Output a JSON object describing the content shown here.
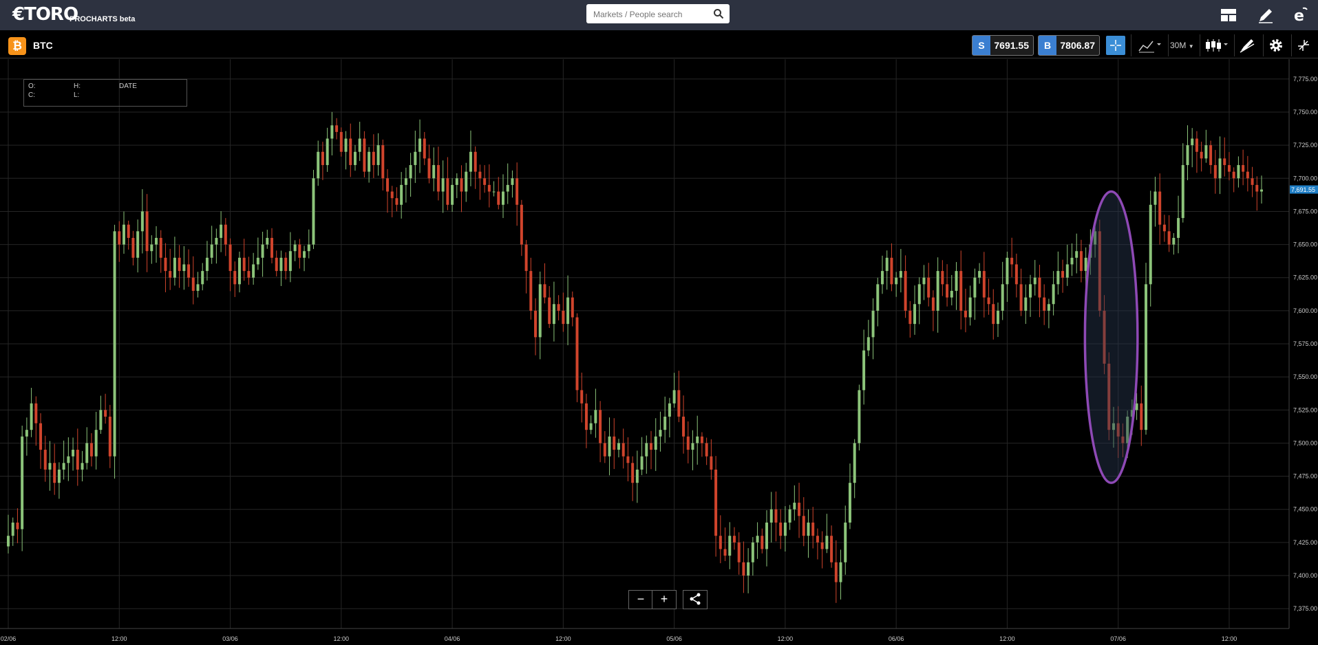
{
  "header": {
    "logo_text": "€TORO",
    "logo_sub": "PROCHARTS beta",
    "search_placeholder": "Markets / People search",
    "icons": [
      "layout-icon",
      "pencil-icon",
      "etoro-e-icon"
    ]
  },
  "instrument": {
    "symbol_badge": "₿",
    "name": "BTC",
    "sell_label": "S",
    "sell_price": "7691.55",
    "buy_label": "B",
    "buy_price": "7806.87",
    "timeframe": "30M",
    "icons": [
      "crosshair-icon",
      "indicators-icon",
      "candlestick-type-icon",
      "drawing-tools-icon",
      "gear-icon",
      "collapse-icon"
    ]
  },
  "ohlc_box": {
    "o": "O:",
    "h": "H:",
    "date": "DATE",
    "c": "C:",
    "l": "L:"
  },
  "zoom": {
    "minus": "−",
    "plus": "+",
    "share_icon": "share-icon"
  },
  "chart_data": {
    "type": "candlestick",
    "colors": {
      "up": "#8cc47a",
      "down": "#d0442c",
      "grid": "#262626",
      "axis_text": "#ccc",
      "current_price_bg": "#1f7ec5",
      "highlight": "#8e49b5"
    },
    "current_price": "7,691.55",
    "yticks": [
      7375,
      7400,
      7425,
      7450,
      7475,
      7500,
      7525,
      7550,
      7575,
      7600,
      7625,
      7650,
      7675,
      7700,
      7725,
      7750,
      7775
    ],
    "ytick_labels": [
      "7,375.00",
      "7,400.00",
      "7,425.00",
      "7,450.00",
      "7,475.00",
      "7,500.00",
      "7,525.00",
      "7,550.00",
      "7,575.00",
      "7,600.00",
      "7,625.00",
      "7,650.00",
      "7,675.00",
      "7,700.00",
      "7,725.00",
      "7,750.00",
      "7,775.00"
    ],
    "xticks": [
      {
        "i": 0,
        "label": "02/06"
      },
      {
        "i": 24,
        "label": "12:00"
      },
      {
        "i": 48,
        "label": "03/06"
      },
      {
        "i": 72,
        "label": "12:00"
      },
      {
        "i": 96,
        "label": "04/06"
      },
      {
        "i": 120,
        "label": "12:00"
      },
      {
        "i": 144,
        "label": "05/06"
      },
      {
        "i": 168,
        "label": "12:00"
      },
      {
        "i": 192,
        "label": "06/06"
      },
      {
        "i": 216,
        "label": "12:00"
      },
      {
        "i": 240,
        "label": "07/06"
      },
      {
        "i": 264,
        "label": "12:00"
      }
    ],
    "closes": [
      7430,
      7440,
      7435,
      7505,
      7510,
      7530,
      7515,
      7495,
      7480,
      7485,
      7470,
      7480,
      7485,
      7490,
      7495,
      7480,
      7485,
      7500,
      7490,
      7510,
      7525,
      7520,
      7490,
      7660,
      7650,
      7665,
      7655,
      7640,
      7660,
      7675,
      7645,
      7650,
      7655,
      7640,
      7630,
      7625,
      7640,
      7630,
      7635,
      7625,
      7615,
      7620,
      7630,
      7640,
      7650,
      7655,
      7665,
      7650,
      7630,
      7620,
      7640,
      7630,
      7625,
      7635,
      7640,
      7650,
      7655,
      7640,
      7630,
      7640,
      7630,
      7645,
      7650,
      7640,
      7645,
      7650,
      7700,
      7720,
      7710,
      7730,
      7740,
      7735,
      7720,
      7730,
      7710,
      7720,
      7730,
      7705,
      7720,
      7710,
      7725,
      7700,
      7690,
      7685,
      7680,
      7695,
      7700,
      7710,
      7720,
      7730,
      7715,
      7700,
      7710,
      7690,
      7700,
      7680,
      7695,
      7700,
      7690,
      7705,
      7720,
      7705,
      7700,
      7695,
      7690,
      7690,
      7680,
      7690,
      7695,
      7700,
      7680,
      7650,
      7630,
      7600,
      7580,
      7620,
      7610,
      7590,
      7605,
      7600,
      7590,
      7610,
      7595,
      7540,
      7530,
      7510,
      7515,
      7525,
      7500,
      7490,
      7505,
      7495,
      7500,
      7490,
      7485,
      7470,
      7480,
      7490,
      7500,
      7495,
      7505,
      7510,
      7520,
      7530,
      7540,
      7520,
      7505,
      7495,
      7500,
      7505,
      7500,
      7490,
      7480,
      7430,
      7420,
      7415,
      7430,
      7425,
      7410,
      7400,
      7410,
      7425,
      7430,
      7420,
      7440,
      7450,
      7440,
      7430,
      7440,
      7450,
      7455,
      7445,
      7430,
      7440,
      7430,
      7425,
      7420,
      7430,
      7410,
      7395,
      7410,
      7440,
      7470,
      7500,
      7540,
      7570,
      7580,
      7600,
      7620,
      7630,
      7640,
      7620,
      7625,
      7630,
      7600,
      7590,
      7605,
      7620,
      7625,
      7610,
      7600,
      7630,
      7620,
      7610,
      7615,
      7630,
      7600,
      7595,
      7610,
      7625,
      7630,
      7610,
      7605,
      7590,
      7600,
      7620,
      7640,
      7635,
      7620,
      7600,
      7610,
      7620,
      7625,
      7610,
      7600,
      7605,
      7620,
      7630,
      7625,
      7635,
      7640,
      7645,
      7630,
      7640,
      7650,
      7660,
      7600,
      7560,
      7510,
      7515,
      7505,
      7500,
      7520,
      7525,
      7530,
      7510,
      7620,
      7680,
      7690,
      7665,
      7660,
      7650,
      7655,
      7670,
      7710,
      7725,
      7730,
      7720,
      7715,
      7725,
      7710,
      7700,
      7715,
      7710,
      7705,
      7700,
      7710,
      7705,
      7700,
      7695,
      7690,
      7691.55
    ],
    "y_range": [
      7360,
      7790
    ],
    "annotation": {
      "type": "ellipse",
      "from_index": 234,
      "to_index": 243,
      "y_top": 7690,
      "y_bottom": 7470
    }
  }
}
